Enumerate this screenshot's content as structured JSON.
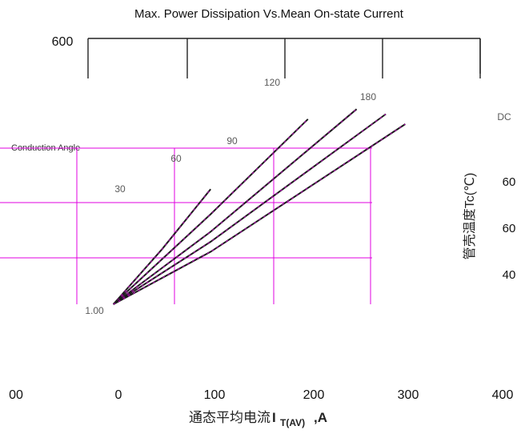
{
  "colors": {
    "grid": "#e000e0",
    "curve": "#1a1a1a",
    "accent": "#4a40a0",
    "annotation": "#5a5a5a"
  },
  "chart_data": {
    "type": "line",
    "title": "Max. Power Dissipation Vs.Mean On-state Current",
    "xlabel": "通态平均电流",
    "xlabel_sub": "T(AV)",
    "xlabel_suffix": ",A",
    "xlabel_prefix_sym": "I",
    "ylabel_right": "管壳温度Tc(℃)",
    "legend_text": "Conduction Angle",
    "top_tick_label": "600",
    "x_tick_labels": [
      "00",
      "0",
      "100",
      "200",
      "300",
      "400"
    ],
    "right_tick_labels": [
      "60",
      "60",
      "40"
    ],
    "annotations": [
      "30",
      "60",
      "90",
      "120",
      "180",
      "DC",
      "1.00"
    ],
    "x": [
      0,
      100,
      200,
      300,
      400
    ],
    "series": [
      {
        "label": "30",
        "points": [
          [
            0,
            0
          ],
          [
            50,
            110
          ],
          [
            100,
            230
          ]
        ]
      },
      {
        "label": "60",
        "points": [
          [
            0,
            0
          ],
          [
            100,
            180
          ],
          [
            200,
            370
          ]
        ]
      },
      {
        "label": "90",
        "points": [
          [
            0,
            0
          ],
          [
            100,
            145
          ],
          [
            250,
            390
          ]
        ]
      },
      {
        "label": "120",
        "points": [
          [
            0,
            0
          ],
          [
            100,
            125
          ],
          [
            280,
            380
          ]
        ]
      },
      {
        "label": "180",
        "points": [
          [
            0,
            0
          ],
          [
            100,
            105
          ],
          [
            300,
            360
          ]
        ]
      }
    ],
    "xlim": [
      -100,
      400
    ],
    "grid": true,
    "legend_position": "top-left"
  }
}
